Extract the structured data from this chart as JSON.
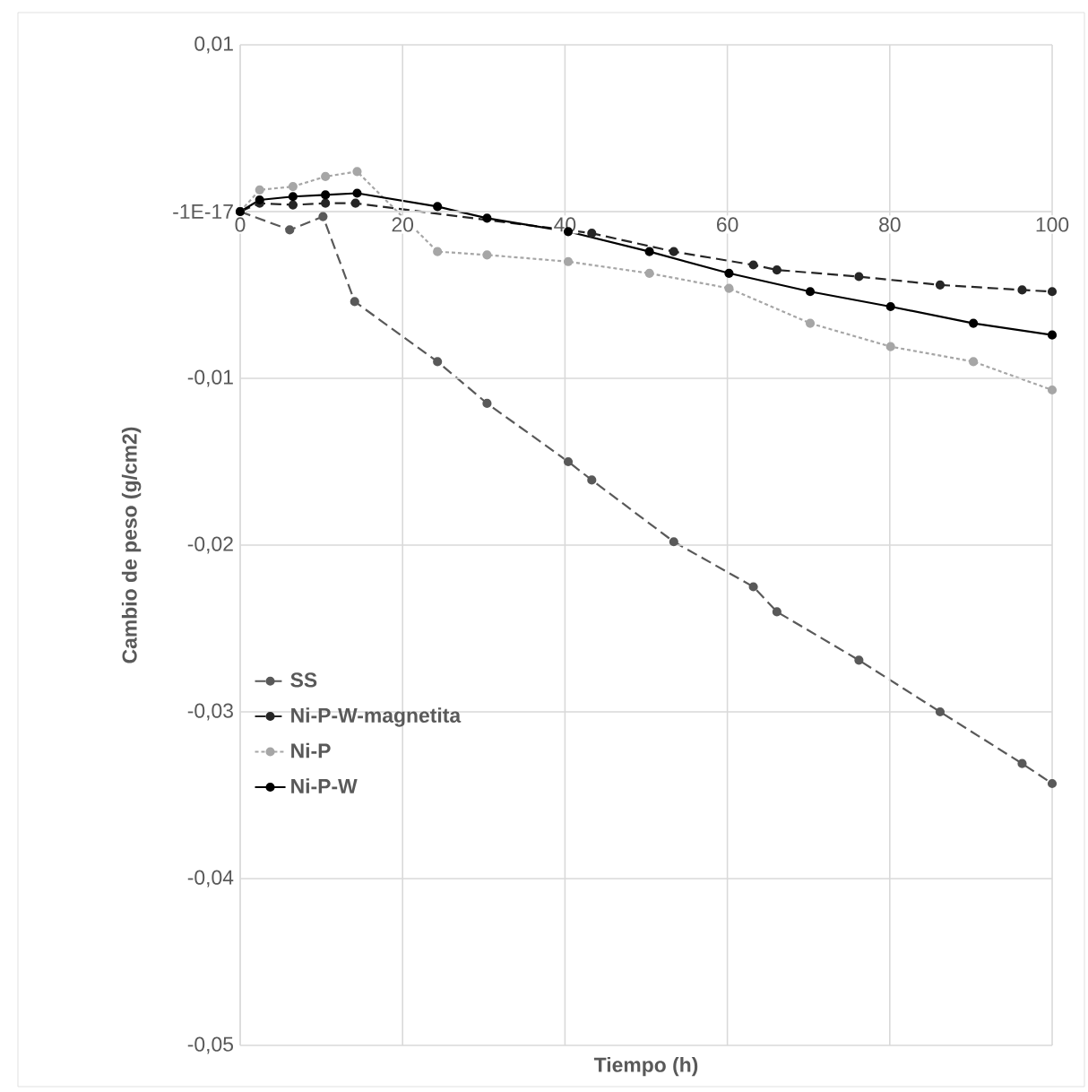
{
  "chart_data": {
    "type": "line",
    "xlabel": "Tiempo (h)",
    "ylabel": "Cambio de peso (g/cm2)",
    "xlim": [
      0,
      100
    ],
    "xticks": [
      0,
      20,
      40,
      60,
      80,
      100
    ],
    "ylim": [
      -0.05,
      0.01
    ],
    "yticks": [
      {
        "value": 0.01,
        "label": "0,01"
      },
      {
        "value": 0,
        "label": "-1E-17"
      },
      {
        "value": -0.01,
        "label": "-0,01"
      },
      {
        "value": -0.02,
        "label": "-0,02"
      },
      {
        "value": -0.03,
        "label": "-0,03"
      },
      {
        "value": -0.04,
        "label": "-0,04"
      },
      {
        "value": -0.05,
        "label": "-0,05"
      }
    ],
    "grid": true,
    "legend": "left",
    "marker": "circle",
    "series": [
      {
        "name": "SS",
        "color": "#595959",
        "line_style": "dashed",
        "x": [
          0,
          6.1,
          10.2,
          14.1,
          24.3,
          30.4,
          40.4,
          43.3,
          53.4,
          63.2,
          66.1,
          76.2,
          86.2,
          96.3,
          100
        ],
        "values": [
          0,
          -0.0011,
          -0.0003,
          -0.0054,
          -0.009,
          -0.0115,
          -0.015,
          -0.0161,
          -0.0198,
          -0.0225,
          -0.024,
          -0.0269,
          -0.03,
          -0.0331,
          -0.0343
        ]
      },
      {
        "name": "Ni-P-W-magnetita",
        "color": "#262626",
        "line_style": "dashed",
        "x": [
          0,
          2.4,
          6.5,
          10.5,
          14.2,
          43.3,
          53.4,
          63.2,
          66.1,
          76.2,
          86.2,
          96.3,
          100
        ],
        "values": [
          0,
          0.0005,
          0.0004,
          0.0005,
          0.0005,
          -0.0013,
          -0.0024,
          -0.0032,
          -0.0035,
          -0.0039,
          -0.0044,
          -0.0047,
          -0.0048
        ]
      },
      {
        "name": "Ni-P",
        "color": "#a6a6a6",
        "line_style": "dotted",
        "x": [
          0,
          2.4,
          6.5,
          10.5,
          14.4,
          24.3,
          30.4,
          40.4,
          50.4,
          60.2,
          70.2,
          80.1,
          90.3,
          100
        ],
        "values": [
          0,
          0.0013,
          0.0015,
          0.0021,
          0.0024,
          -0.0024,
          -0.0026,
          -0.003,
          -0.0037,
          -0.0046,
          -0.0067,
          -0.0081,
          -0.009,
          -0.0107
        ]
      },
      {
        "name": "Ni-P-W",
        "color": "#000000",
        "line_style": "solid",
        "x": [
          0,
          2.4,
          6.5,
          10.5,
          14.4,
          24.3,
          30.4,
          40.4,
          50.4,
          60.2,
          70.2,
          80.1,
          90.3,
          100
        ],
        "values": [
          0,
          0.0007,
          0.0009,
          0.001,
          0.0011,
          0.0003,
          -0.0004,
          -0.0012,
          -0.0024,
          -0.0037,
          -0.0048,
          -0.0057,
          -0.0067,
          -0.0074
        ]
      }
    ]
  }
}
